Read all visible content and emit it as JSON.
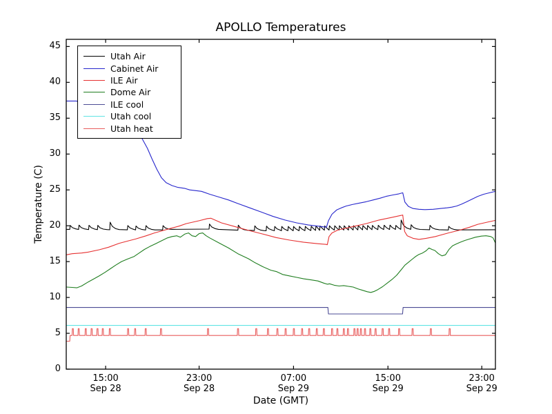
{
  "figure": {
    "title": "APOLLO Temperatures",
    "xlabel": "Date (GMT)",
    "ylabel": "Temperature (C)"
  },
  "legend": {
    "position": "upper left",
    "items": [
      {
        "label": "Utah Air",
        "color": "#000000"
      },
      {
        "label": "Cabinet Air",
        "color": "#2525cc"
      },
      {
        "label": "ILE Air",
        "color": "#e63030"
      },
      {
        "label": "Dome Air",
        "color": "#1e7d1e"
      },
      {
        "label": "ILE cool",
        "color": "#4b4b94"
      },
      {
        "label": "Utah cool",
        "color": "#5fe3e3"
      },
      {
        "label": "Utah heat",
        "color": "#e85c5c"
      }
    ]
  },
  "chart_data": {
    "type": "line",
    "title": "APOLLO Temperatures",
    "xlabel": "Date (GMT)",
    "ylabel": "Temperature (C)",
    "grid": false,
    "legend_position": "upper left",
    "x_axis_note": "t = hours from left edge of plot (approx 11:40 GMT Sep 28) to right edge (approx 00:10 GMT Sep 30)",
    "xlim": [
      0,
      36.5
    ],
    "ylim": [
      0,
      46
    ],
    "y_ticks": {
      "values": [
        0,
        5,
        10,
        15,
        20,
        25,
        30,
        35,
        40,
        45
      ]
    },
    "x_ticks": [
      {
        "t": 3.35,
        "time": "15:00",
        "date": "Sep 28"
      },
      {
        "t": 11.3,
        "time": "23:00",
        "date": "Sep 28"
      },
      {
        "t": 19.33,
        "time": "07:00",
        "date": "Sep 29"
      },
      {
        "t": 27.36,
        "time": "15:00",
        "date": "Sep 29"
      },
      {
        "t": 35.34,
        "time": "23:00",
        "date": "Sep 29"
      }
    ],
    "series": [
      {
        "name": "Utah Air",
        "color": "#000000",
        "style": "sawtooth",
        "baseline": [
          [
            0,
            19.5
          ],
          [
            3,
            19.45
          ],
          [
            8,
            19.4
          ],
          [
            10.5,
            19.6
          ],
          [
            12,
            19.55
          ],
          [
            14,
            19.4
          ],
          [
            17,
            19.3
          ],
          [
            20,
            19.3
          ],
          [
            22.4,
            19.4
          ],
          [
            24,
            19.4
          ],
          [
            26,
            19.45
          ],
          [
            28.4,
            19.5
          ],
          [
            29,
            19.5
          ],
          [
            31,
            19.45
          ],
          [
            33,
            19.4
          ],
          [
            36.5,
            19.45
          ]
        ],
        "spikes": [
          [
            0.3,
            0.55
          ],
          [
            1.05,
            0.6
          ],
          [
            1.9,
            0.6
          ],
          [
            2.65,
            0.6
          ],
          [
            3.7,
            1.05
          ],
          [
            5.2,
            0.6
          ],
          [
            5.9,
            0.55
          ],
          [
            6.75,
            0.6
          ],
          [
            8.2,
            0.6
          ],
          [
            12.15,
            0.7
          ],
          [
            14.6,
            0.7
          ],
          [
            16.0,
            0.65
          ],
          [
            17.0,
            0.65
          ],
          [
            17.7,
            0.6
          ],
          [
            18.3,
            0.6
          ],
          [
            18.85,
            0.6
          ],
          [
            19.3,
            0.6
          ],
          [
            19.8,
            0.6
          ],
          [
            20.3,
            0.6
          ],
          [
            20.8,
            0.6
          ],
          [
            21.2,
            0.6
          ],
          [
            21.55,
            0.6
          ],
          [
            21.95,
            0.6
          ],
          [
            22.35,
            0.6
          ],
          [
            22.8,
            0.6
          ],
          [
            23.2,
            0.6
          ],
          [
            23.6,
            0.6
          ],
          [
            24.0,
            0.6
          ],
          [
            24.4,
            0.6
          ],
          [
            24.8,
            0.6
          ],
          [
            25.2,
            0.6
          ],
          [
            25.6,
            0.6
          ],
          [
            26.0,
            0.6
          ],
          [
            26.5,
            0.6
          ],
          [
            27.0,
            0.6
          ],
          [
            27.5,
            0.6
          ],
          [
            28.0,
            0.55
          ],
          [
            28.45,
            1.3
          ],
          [
            29.3,
            0.65
          ],
          [
            30.9,
            0.6
          ],
          [
            32.5,
            0.5
          ]
        ]
      },
      {
        "name": "Cabinet Air",
        "color": "#2525cc",
        "style": "points",
        "points": [
          [
            0,
            37.4
          ],
          [
            0.9,
            37.4
          ],
          [
            1.6,
            36.5
          ],
          [
            2.6,
            35.2
          ],
          [
            3.6,
            34.1
          ],
          [
            4.6,
            33.3
          ],
          [
            5.6,
            32.7
          ],
          [
            6.4,
            32.3
          ],
          [
            6.9,
            30.8
          ],
          [
            7.3,
            29.3
          ],
          [
            7.7,
            27.9
          ],
          [
            8.1,
            26.7
          ],
          [
            8.5,
            26.0
          ],
          [
            9.0,
            25.6
          ],
          [
            9.5,
            25.35
          ],
          [
            10.1,
            25.2
          ],
          [
            10.5,
            25.0
          ],
          [
            11.5,
            24.8
          ],
          [
            12.2,
            24.4
          ],
          [
            13.0,
            24.0
          ],
          [
            13.8,
            23.6
          ],
          [
            14.6,
            23.1
          ],
          [
            15.6,
            22.5
          ],
          [
            16.6,
            21.9
          ],
          [
            17.6,
            21.3
          ],
          [
            18.6,
            20.8
          ],
          [
            19.6,
            20.4
          ],
          [
            20.6,
            20.1
          ],
          [
            21.4,
            19.95
          ],
          [
            22.13,
            19.8
          ],
          [
            22.3,
            20.7
          ],
          [
            22.6,
            21.6
          ],
          [
            23.0,
            22.2
          ],
          [
            23.4,
            22.5
          ],
          [
            23.8,
            22.75
          ],
          [
            24.3,
            22.95
          ],
          [
            24.9,
            23.15
          ],
          [
            25.5,
            23.35
          ],
          [
            26.1,
            23.6
          ],
          [
            26.7,
            23.85
          ],
          [
            27.2,
            24.1
          ],
          [
            27.8,
            24.3
          ],
          [
            28.3,
            24.45
          ],
          [
            28.62,
            24.6
          ],
          [
            28.8,
            23.3
          ],
          [
            29.1,
            22.7
          ],
          [
            29.5,
            22.4
          ],
          [
            30.0,
            22.3
          ],
          [
            30.5,
            22.25
          ],
          [
            31.2,
            22.3
          ],
          [
            31.8,
            22.4
          ],
          [
            32.4,
            22.5
          ],
          [
            32.8,
            22.6
          ],
          [
            33.2,
            22.75
          ],
          [
            33.6,
            23.0
          ],
          [
            34.0,
            23.3
          ],
          [
            34.5,
            23.7
          ],
          [
            35.0,
            24.1
          ],
          [
            35.5,
            24.4
          ],
          [
            36.0,
            24.6
          ],
          [
            36.5,
            24.8
          ]
        ]
      },
      {
        "name": "ILE Air",
        "color": "#e63030",
        "style": "points",
        "points": [
          [
            0,
            15.95
          ],
          [
            0.5,
            16.1
          ],
          [
            1.3,
            16.2
          ],
          [
            1.8,
            16.3
          ],
          [
            2.8,
            16.65
          ],
          [
            3.6,
            17.0
          ],
          [
            4.5,
            17.55
          ],
          [
            5.3,
            17.9
          ],
          [
            5.9,
            18.15
          ],
          [
            6.8,
            18.6
          ],
          [
            7.5,
            19.0
          ],
          [
            8.8,
            19.6
          ],
          [
            9.6,
            19.95
          ],
          [
            10.2,
            20.3
          ],
          [
            11.3,
            20.7
          ],
          [
            12.0,
            21.0
          ],
          [
            12.3,
            21.05
          ],
          [
            13.2,
            20.4
          ],
          [
            14.3,
            19.9
          ],
          [
            15.5,
            19.35
          ],
          [
            16.7,
            18.85
          ],
          [
            17.85,
            18.35
          ],
          [
            19.0,
            18.0
          ],
          [
            20.2,
            17.7
          ],
          [
            21.4,
            17.5
          ],
          [
            22.1,
            17.4
          ],
          [
            22.2,
            17.35
          ],
          [
            22.35,
            18.5
          ],
          [
            22.6,
            19.0
          ],
          [
            23.1,
            19.4
          ],
          [
            24.3,
            19.85
          ],
          [
            25.5,
            20.3
          ],
          [
            26.6,
            20.8
          ],
          [
            27.8,
            21.2
          ],
          [
            28.5,
            21.45
          ],
          [
            28.62,
            21.5
          ],
          [
            28.78,
            19.2
          ],
          [
            29.0,
            18.6
          ],
          [
            29.5,
            18.25
          ],
          [
            30.0,
            18.1
          ],
          [
            30.6,
            18.25
          ],
          [
            31.4,
            18.5
          ],
          [
            32.5,
            19.0
          ],
          [
            33.5,
            19.4
          ],
          [
            34.3,
            19.8
          ],
          [
            35.0,
            20.2
          ],
          [
            35.8,
            20.5
          ],
          [
            36.5,
            20.75
          ]
        ]
      },
      {
        "name": "Dome Air",
        "color": "#1e7d1e",
        "style": "points",
        "points": [
          [
            0,
            11.45
          ],
          [
            0.5,
            11.4
          ],
          [
            0.9,
            11.35
          ],
          [
            1.3,
            11.6
          ],
          [
            1.8,
            12.1
          ],
          [
            2.3,
            12.55
          ],
          [
            2.8,
            13.0
          ],
          [
            3.3,
            13.5
          ],
          [
            3.75,
            14.0
          ],
          [
            4.2,
            14.5
          ],
          [
            4.7,
            15.0
          ],
          [
            5.2,
            15.35
          ],
          [
            5.75,
            15.7
          ],
          [
            6.2,
            16.2
          ],
          [
            6.65,
            16.7
          ],
          [
            7.1,
            17.1
          ],
          [
            7.6,
            17.5
          ],
          [
            8.1,
            17.9
          ],
          [
            8.6,
            18.3
          ],
          [
            9.0,
            18.5
          ],
          [
            9.4,
            18.6
          ],
          [
            9.7,
            18.4
          ],
          [
            10.1,
            18.85
          ],
          [
            10.4,
            19.0
          ],
          [
            10.7,
            18.6
          ],
          [
            11.0,
            18.5
          ],
          [
            11.3,
            18.9
          ],
          [
            11.6,
            19.0
          ],
          [
            11.9,
            18.6
          ],
          [
            12.2,
            18.3
          ],
          [
            13.0,
            17.6
          ],
          [
            13.8,
            16.9
          ],
          [
            14.6,
            16.1
          ],
          [
            15.5,
            15.4
          ],
          [
            16.0,
            14.9
          ],
          [
            16.7,
            14.3
          ],
          [
            17.4,
            13.8
          ],
          [
            17.9,
            13.6
          ],
          [
            18.4,
            13.2
          ],
          [
            19.0,
            13.0
          ],
          [
            19.6,
            12.8
          ],
          [
            20.2,
            12.6
          ],
          [
            20.8,
            12.45
          ],
          [
            21.4,
            12.3
          ],
          [
            21.9,
            12.0
          ],
          [
            22.2,
            11.85
          ],
          [
            22.4,
            11.9
          ],
          [
            22.8,
            11.7
          ],
          [
            23.2,
            11.6
          ],
          [
            23.6,
            11.65
          ],
          [
            24.0,
            11.55
          ],
          [
            24.4,
            11.45
          ],
          [
            24.8,
            11.2
          ],
          [
            25.2,
            11.0
          ],
          [
            25.6,
            10.8
          ],
          [
            25.9,
            10.7
          ],
          [
            26.2,
            10.85
          ],
          [
            26.5,
            11.1
          ],
          [
            26.9,
            11.5
          ],
          [
            27.3,
            12.0
          ],
          [
            27.7,
            12.5
          ],
          [
            28.1,
            13.1
          ],
          [
            28.5,
            13.9
          ],
          [
            28.8,
            14.5
          ],
          [
            29.1,
            14.9
          ],
          [
            29.4,
            15.3
          ],
          [
            29.7,
            15.7
          ],
          [
            30.0,
            16.0
          ],
          [
            30.3,
            16.2
          ],
          [
            30.6,
            16.5
          ],
          [
            30.85,
            16.9
          ],
          [
            31.1,
            16.7
          ],
          [
            31.35,
            16.55
          ],
          [
            31.65,
            16.1
          ],
          [
            31.95,
            15.8
          ],
          [
            32.25,
            15.95
          ],
          [
            32.55,
            16.7
          ],
          [
            32.85,
            17.2
          ],
          [
            33.15,
            17.45
          ],
          [
            33.5,
            17.7
          ],
          [
            33.9,
            17.95
          ],
          [
            34.3,
            18.15
          ],
          [
            34.8,
            18.4
          ],
          [
            35.3,
            18.55
          ],
          [
            35.7,
            18.6
          ],
          [
            36.1,
            18.5
          ],
          [
            36.3,
            18.3
          ],
          [
            36.5,
            17.6
          ]
        ]
      },
      {
        "name": "ILE cool",
        "color": "#4b4b94",
        "style": "points",
        "points": [
          [
            0,
            8.6
          ],
          [
            22.25,
            8.6
          ],
          [
            22.3,
            7.7
          ],
          [
            28.6,
            7.7
          ],
          [
            28.65,
            8.6
          ],
          [
            36.5,
            8.6
          ]
        ]
      },
      {
        "name": "Utah cool",
        "color": "#5fe3e3",
        "style": "points",
        "points": [
          [
            0,
            6.1
          ],
          [
            36.5,
            6.1
          ]
        ]
      },
      {
        "name": "Utah heat",
        "color": "#e85c5c",
        "style": "pulses",
        "baseline": [
          [
            0,
            3.9
          ],
          [
            0.3,
            3.9
          ],
          [
            0.33,
            4.7
          ],
          [
            36.5,
            4.7
          ]
        ],
        "pulse_top": 5.65,
        "pulse_width": 0.12,
        "pulses": [
          0.5,
          1.0,
          1.6,
          2.1,
          2.6,
          3.05,
          3.65,
          5.2,
          5.8,
          6.7,
          8.0,
          12.0,
          14.55,
          16.1,
          17.1,
          17.9,
          18.6,
          19.3,
          20.0,
          20.6,
          21.25,
          21.85,
          22.55,
          23.0,
          23.55,
          23.9,
          24.45,
          24.72,
          25.0,
          25.35,
          25.8,
          26.25,
          26.85,
          27.4,
          28.25,
          29.4,
          30.95,
          32.55
        ]
      }
    ]
  }
}
